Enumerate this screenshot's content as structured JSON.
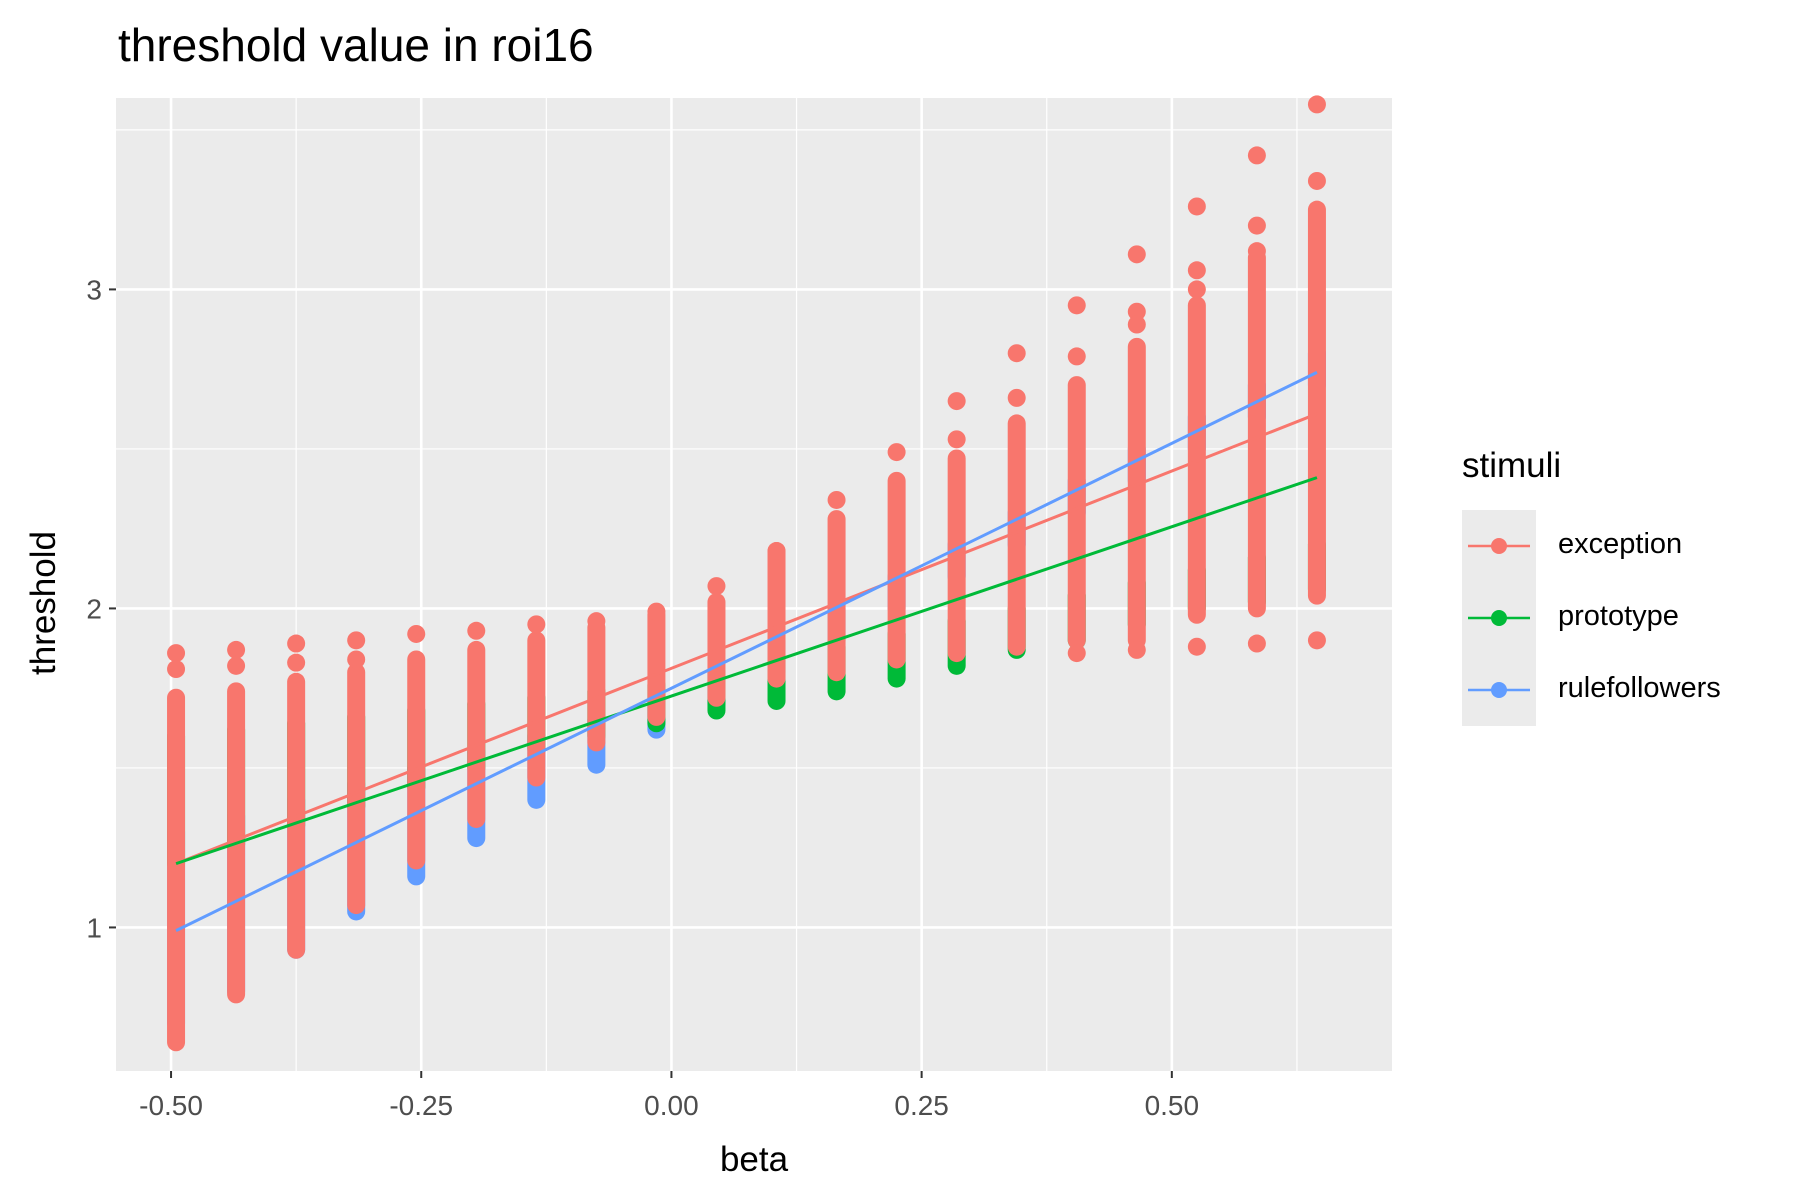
{
  "chart_data": {
    "type": "scatter",
    "title": "threshold value in roi16",
    "xlabel": "beta",
    "ylabel": "threshold",
    "xlim": [
      -0.555,
      0.72
    ],
    "ylim": [
      0.55,
      3.6
    ],
    "x_ticks": [
      -0.5,
      -0.25,
      0.0,
      0.25,
      0.5
    ],
    "x_tick_labels": [
      "-0.50",
      "-0.25",
      "0.00",
      "0.25",
      "0.50"
    ],
    "y_ticks": [
      1,
      2,
      3
    ],
    "y_tick_labels": [
      "1",
      "2",
      "3"
    ],
    "grid": true,
    "legend_title": "stimuli",
    "legend_position": "right",
    "x_levels": [
      -0.495,
      -0.435,
      -0.375,
      -0.315,
      -0.255,
      -0.195,
      -0.135,
      -0.075,
      -0.015,
      0.045,
      0.105,
      0.165,
      0.225,
      0.285,
      0.345,
      0.405,
      0.465,
      0.525,
      0.585,
      0.645
    ],
    "series": [
      {
        "name": "exception",
        "color": "#F8766D",
        "column_ranges": [
          [
            0.64,
            1.72
          ],
          [
            0.79,
            1.74
          ],
          [
            0.93,
            1.77
          ],
          [
            1.07,
            1.8
          ],
          [
            1.21,
            1.84
          ],
          [
            1.34,
            1.87
          ],
          [
            1.47,
            1.9
          ],
          [
            1.58,
            1.94
          ],
          [
            1.66,
            1.98
          ],
          [
            1.72,
            2.02
          ],
          [
            1.78,
            2.18
          ],
          [
            1.8,
            2.28
          ],
          [
            1.84,
            2.4
          ],
          [
            1.86,
            2.47
          ],
          [
            1.88,
            2.58
          ],
          [
            1.9,
            2.7
          ],
          [
            1.9,
            2.82
          ],
          [
            1.98,
            2.95
          ],
          [
            2.0,
            3.1
          ],
          [
            2.04,
            3.25
          ]
        ],
        "outliers": [
          [
            -0.495,
            1.86
          ],
          [
            -0.495,
            1.81
          ],
          [
            -0.435,
            1.87
          ],
          [
            -0.435,
            1.82
          ],
          [
            -0.375,
            1.89
          ],
          [
            -0.375,
            1.83
          ],
          [
            -0.315,
            1.9
          ],
          [
            -0.315,
            1.84
          ],
          [
            -0.255,
            1.92
          ],
          [
            -0.195,
            1.93
          ],
          [
            -0.135,
            1.95
          ],
          [
            -0.075,
            1.96
          ],
          [
            -0.015,
            1.99
          ],
          [
            0.045,
            2.07
          ],
          [
            0.105,
            2.18
          ],
          [
            0.165,
            2.34
          ],
          [
            0.225,
            2.49
          ],
          [
            0.285,
            2.65
          ],
          [
            0.285,
            2.53
          ],
          [
            0.345,
            2.8
          ],
          [
            0.345,
            2.66
          ],
          [
            0.405,
            2.95
          ],
          [
            0.405,
            2.79
          ],
          [
            0.405,
            1.86
          ],
          [
            0.465,
            3.11
          ],
          [
            0.465,
            2.93
          ],
          [
            0.465,
            2.89
          ],
          [
            0.465,
            1.87
          ],
          [
            0.525,
            3.26
          ],
          [
            0.525,
            3.06
          ],
          [
            0.525,
            3.0
          ],
          [
            0.525,
            1.88
          ],
          [
            0.585,
            3.42
          ],
          [
            0.585,
            3.2
          ],
          [
            0.585,
            3.12
          ],
          [
            0.585,
            1.89
          ],
          [
            0.645,
            3.58
          ],
          [
            0.645,
            3.34
          ],
          [
            0.645,
            1.9
          ]
        ],
        "fit": {
          "x": [
            -0.495,
            0.645
          ],
          "y": [
            1.2,
            2.61
          ]
        }
      },
      {
        "name": "prototype",
        "color": "#00BA38",
        "column_ranges": [
          [
            1.2,
            1.6
          ],
          [
            1.26,
            1.62
          ],
          [
            1.32,
            1.64
          ],
          [
            1.38,
            1.66
          ],
          [
            1.44,
            1.68
          ],
          [
            1.5,
            1.7
          ],
          [
            1.56,
            1.72
          ],
          [
            1.6,
            1.74
          ],
          [
            1.64,
            1.76
          ],
          [
            1.68,
            1.8
          ],
          [
            1.71,
            1.84
          ],
          [
            1.74,
            1.88
          ],
          [
            1.78,
            1.92
          ],
          [
            1.82,
            1.96
          ],
          [
            1.87,
            2.0
          ],
          [
            1.9,
            2.04
          ],
          [
            1.95,
            2.08
          ],
          [
            2.0,
            2.12
          ],
          [
            2.02,
            2.16
          ],
          [
            2.06,
            2.2
          ]
        ],
        "outliers": [],
        "fit": {
          "x": [
            -0.495,
            0.645
          ],
          "y": [
            1.2,
            2.41
          ]
        }
      },
      {
        "name": "rulefollowers",
        "color": "#619CFF",
        "column_ranges": [
          [
            0.7,
            1.3
          ],
          [
            0.8,
            1.35
          ],
          [
            0.93,
            1.4
          ],
          [
            1.05,
            1.45
          ],
          [
            1.16,
            1.5
          ],
          [
            1.28,
            1.55
          ],
          [
            1.4,
            1.6
          ],
          [
            1.51,
            1.65
          ],
          [
            1.62,
            1.7
          ],
          [
            1.7,
            1.8
          ],
          [
            1.8,
            1.9
          ],
          [
            1.9,
            2.0
          ],
          [
            2.0,
            2.1
          ],
          [
            2.1,
            2.2
          ],
          [
            2.2,
            2.3
          ],
          [
            2.3,
            2.4
          ],
          [
            2.4,
            2.5
          ],
          [
            2.5,
            2.6
          ],
          [
            2.6,
            2.7
          ],
          [
            2.7,
            2.8
          ]
        ],
        "outliers": [],
        "fit": {
          "x": [
            -0.495,
            0.645
          ],
          "y": [
            0.99,
            2.74
          ]
        }
      }
    ]
  }
}
